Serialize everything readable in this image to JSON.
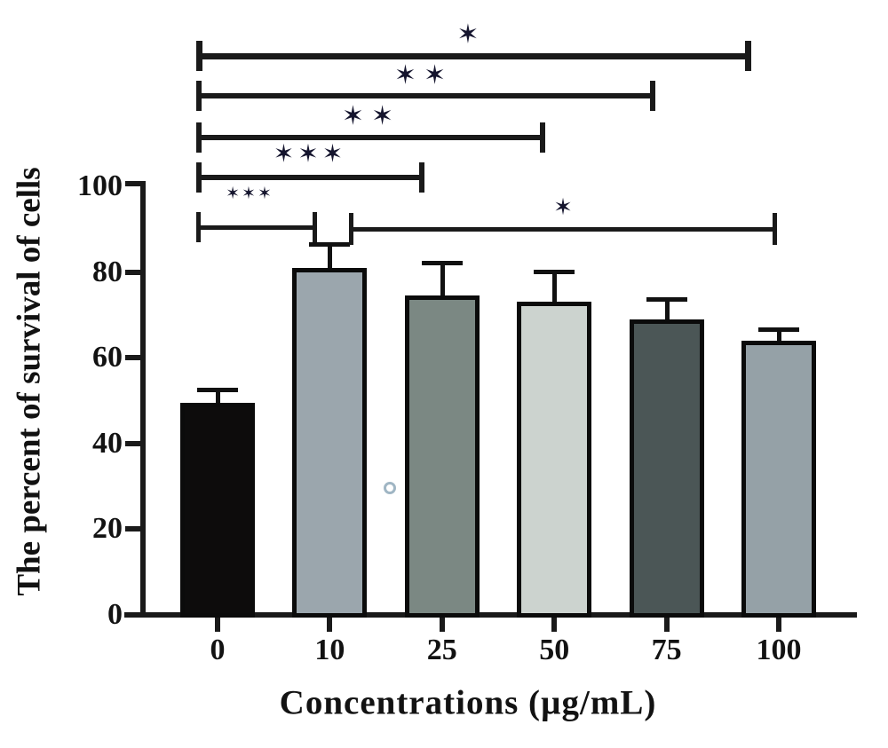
{
  "chart_data": {
    "type": "bar",
    "title": "",
    "xlabel": "Concentrations (µg/mL)",
    "ylabel": "The percent of survival of cells",
    "categories": [
      "0",
      "10",
      "25",
      "50",
      "75",
      "100"
    ],
    "values": [
      49.5,
      81,
      74.5,
      73,
      69,
      64
    ],
    "error_upper": [
      3,
      5.5,
      7.5,
      7,
      4.5,
      2.5
    ],
    "bar_colors": [
      "#0d0c0c",
      "#9ba6ad",
      "#7b8883",
      "#ccd3cf",
      "#4b5656",
      "#95a1a7"
    ],
    "bar_border_color": "#0b0b0b",
    "axis_color": "#1a1a1a",
    "star_color": "#15152e",
    "star_symbol": "✶",
    "ylim": [
      0,
      100
    ],
    "yticks": [
      0,
      20,
      40,
      60,
      80,
      100
    ],
    "grid": false,
    "legend": null,
    "significance_brackets": [
      {
        "from": "0",
        "to": "100",
        "stars": 1,
        "x1": 224,
        "x2": 842,
        "y": 63,
        "label_x": 531,
        "label_y": 39,
        "font": 30,
        "thick": 7,
        "cap": 34,
        "spacing": 8
      },
      {
        "from": "0",
        "to": "75",
        "stars": 2,
        "x1": 224,
        "x2": 735,
        "y": 108,
        "label_x": 477,
        "label_y": 85,
        "font": 30,
        "thick": 6,
        "cap": 34,
        "spacing": 8
      },
      {
        "from": "0",
        "to": "50",
        "stars": 2,
        "x1": 224,
        "x2": 611,
        "y": 155,
        "label_x": 418,
        "label_y": 131,
        "font": 30,
        "thick": 6,
        "cap": 34,
        "spacing": 8
      },
      {
        "from": "0",
        "to": "25",
        "stars": 3,
        "x1": 224,
        "x2": 475,
        "y": 200,
        "label_x": 349,
        "label_y": 173,
        "font": 28,
        "thick": 6,
        "cap": 34,
        "spacing": 4
      },
      {
        "from": "0",
        "to": "10",
        "stars": 3,
        "x1": 224,
        "x2": 355,
        "y": 256,
        "label_x": 281,
        "label_y": 218,
        "font": 19,
        "thick": 5,
        "cap": 34,
        "spacing": 2
      },
      {
        "from": "10",
        "to": "100",
        "stars": 1,
        "x1": 396,
        "x2": 873,
        "y": 258,
        "label_x": 634,
        "label_y": 234,
        "font": 26,
        "thick": 5,
        "cap": 36,
        "spacing": 0
      }
    ],
    "stray_marker": {
      "shape": "circle-outline",
      "x": 439,
      "y": 550,
      "diameter": 14,
      "color": "#8fa9ba"
    }
  }
}
